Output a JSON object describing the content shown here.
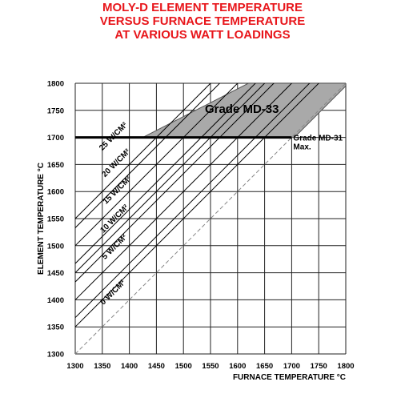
{
  "title_lines": [
    "MOLY-D ELEMENT TEMPERATURE",
    "VERSUS FURNACE TEMPERATURE",
    "AT VARIOUS WATT LOADINGS"
  ],
  "colors": {
    "title": "#e8161b",
    "shade": "#a9a9a9",
    "grid": "#222222",
    "text": "#000000"
  },
  "chart_data": {
    "type": "line",
    "title": "MOLY-D ELEMENT TEMPERATURE VERSUS FURNACE TEMPERATURE AT VARIOUS WATT LOADINGS",
    "xlabel": "FURNACE TEMPERATURE °C",
    "ylabel": "ELEMENT TEMPERATURE °C",
    "xlim": [
      1300,
      1800
    ],
    "ylim": [
      1300,
      1800
    ],
    "x_ticks": [
      "1300",
      "1350",
      "1400",
      "1450",
      "1500",
      "1550",
      "1600",
      "1650",
      "1700",
      "1750",
      "1800"
    ],
    "y_ticks": [
      "1300",
      "1350",
      "1400",
      "1450",
      "1500",
      "1550",
      "1600",
      "1650",
      "1700",
      "1750",
      "1800"
    ],
    "grid": true,
    "series": [
      {
        "name": "0 W/CM²",
        "x": [
          1300,
          1800
        ],
        "y": [
          1300,
          1800
        ],
        "dashed": true
      },
      {
        "name": "5 W/CM²",
        "x": [
          1300,
          1800
        ],
        "y": [
          1350,
          1850
        ]
      },
      {
        "name": "10 W/CM²",
        "x": [
          1300,
          1800
        ],
        "y": [
          1400,
          1900
        ]
      },
      {
        "name": "15 W/CM²",
        "x": [
          1300,
          1800
        ],
        "y": [
          1450,
          1950
        ]
      },
      {
        "name": "20 W/CM²",
        "x": [
          1300,
          1800
        ],
        "y": [
          1500,
          2000
        ]
      },
      {
        "name": "25 W/CM²",
        "x": [
          1300,
          1800
        ],
        "y": [
          1550,
          2050
        ]
      }
    ],
    "extra_lines": [
      {
        "x": [
          1300,
          1800
        ],
        "y": [
          1367,
          1867
        ]
      },
      {
        "x": [
          1300,
          1800
        ],
        "y": [
          1433,
          1933
        ]
      },
      {
        "x": [
          1300,
          1800
        ],
        "y": [
          1467,
          1967
        ]
      },
      {
        "x": [
          1300,
          1800
        ],
        "y": [
          1533,
          2033
        ]
      }
    ],
    "series_labels": [
      {
        "text": "25 W/CM²",
        "x": 1350,
        "y": 1675
      },
      {
        "text": "20 W/CM²",
        "x": 1355,
        "y": 1626
      },
      {
        "text": "15 W/CM²",
        "x": 1357,
        "y": 1576
      },
      {
        "text": "10 W/CM²",
        "x": 1352,
        "y": 1523
      },
      {
        "text": "5 W/CM²",
        "x": 1355,
        "y": 1474
      },
      {
        "text": "0 W/CM²",
        "x": 1352,
        "y": 1390
      }
    ],
    "threshold": {
      "label_lines": [
        "Grade MD-31",
        "Max."
      ],
      "y": 1700,
      "x_end": 1700,
      "label_x": 1703,
      "label_y": 1700
    },
    "region": {
      "label": "Grade MD-33",
      "polygon": [
        [
          1425,
          1700
        ],
        [
          1705,
          1700
        ],
        [
          1800,
          1795
        ],
        [
          1800,
          1800
        ],
        [
          1620,
          1800
        ]
      ],
      "label_x": 1608,
      "label_y": 1745
    }
  }
}
